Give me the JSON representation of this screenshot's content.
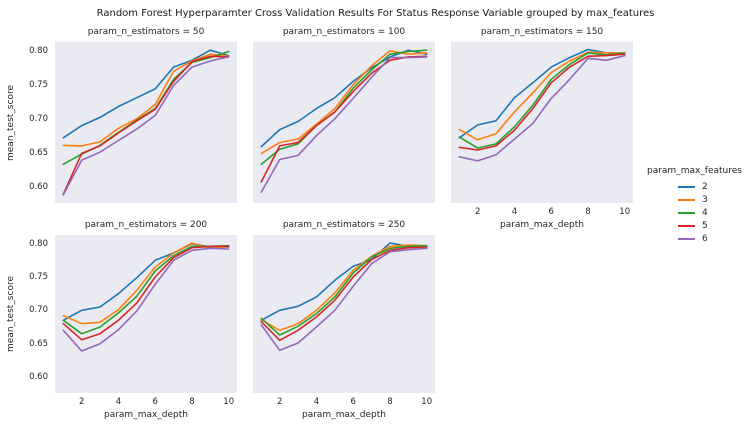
{
  "chart_data": {
    "type": "line",
    "title": "Random Forest Hyperparamter Cross Validation Results For Status Response Variable grouped by max_features",
    "xlabel": "param_max_depth",
    "ylabel": "mean_test_score",
    "x": [
      1,
      2,
      3,
      4,
      5,
      6,
      7,
      8,
      9,
      10
    ],
    "xlim": [
      0.55,
      10.45
    ],
    "ylim": [
      0.576,
      0.813
    ],
    "xticks": [
      2,
      4,
      6,
      8,
      10
    ],
    "yticks": [
      "0.60",
      "0.65",
      "0.70",
      "0.75",
      "0.80"
    ],
    "grid": false,
    "plot_bg": "#eaeaf2",
    "colors": {
      "2": "#1f77b4",
      "3": "#ff7f0e",
      "4": "#2ca02c",
      "5": "#d62728",
      "6": "#9467bd"
    },
    "legend": {
      "title": "param_max_features",
      "position": "right",
      "entries": [
        {
          "label": "2",
          "color": "#1f77b4"
        },
        {
          "label": "3",
          "color": "#ff7f0e"
        },
        {
          "label": "4",
          "color": "#2ca02c"
        },
        {
          "label": "5",
          "color": "#d62728"
        },
        {
          "label": "6",
          "color": "#9467bd"
        }
      ]
    },
    "facets": [
      {
        "title": "param_n_estimators = 50",
        "row": 0,
        "col": 0,
        "series": [
          {
            "name": "2",
            "values": [
              0.672,
              0.69,
              0.702,
              0.718,
              0.731,
              0.744,
              0.776,
              0.786,
              0.801,
              0.793
            ]
          },
          {
            "name": "3",
            "values": [
              0.661,
              0.66,
              0.666,
              0.686,
              0.7,
              0.721,
              0.77,
              0.785,
              0.795,
              0.792
            ]
          },
          {
            "name": "4",
            "values": [
              0.633,
              0.648,
              0.661,
              0.68,
              0.698,
              0.715,
              0.758,
              0.783,
              0.79,
              0.799
            ]
          },
          {
            "name": "5",
            "values": [
              0.589,
              0.649,
              0.66,
              0.679,
              0.697,
              0.714,
              0.755,
              0.784,
              0.792,
              0.791
            ]
          },
          {
            "name": "6",
            "values": [
              0.588,
              0.639,
              0.651,
              0.668,
              0.685,
              0.705,
              0.749,
              0.776,
              0.785,
              0.791
            ]
          }
        ]
      },
      {
        "title": "param_n_estimators = 100",
        "row": 0,
        "col": 1,
        "series": [
          {
            "name": "2",
            "values": [
              0.659,
              0.684,
              0.696,
              0.715,
              0.731,
              0.755,
              0.775,
              0.791,
              0.801,
              0.795
            ]
          },
          {
            "name": "3",
            "values": [
              0.649,
              0.665,
              0.67,
              0.692,
              0.715,
              0.75,
              0.778,
              0.8,
              0.795,
              0.797
            ]
          },
          {
            "name": "4",
            "values": [
              0.633,
              0.655,
              0.663,
              0.69,
              0.71,
              0.745,
              0.772,
              0.795,
              0.799,
              0.801
            ]
          },
          {
            "name": "5",
            "values": [
              0.607,
              0.66,
              0.665,
              0.69,
              0.71,
              0.74,
              0.767,
              0.786,
              0.791,
              0.792
            ]
          },
          {
            "name": "6",
            "values": [
              0.592,
              0.64,
              0.646,
              0.675,
              0.7,
              0.73,
              0.761,
              0.79,
              0.79,
              0.791
            ]
          }
        ]
      },
      {
        "title": "param_n_estimators = 150",
        "row": 0,
        "col": 2,
        "series": [
          {
            "name": "2",
            "values": [
              0.672,
              0.691,
              0.697,
              0.731,
              0.753,
              0.776,
              0.79,
              0.802,
              0.797,
              0.796
            ]
          },
          {
            "name": "3",
            "values": [
              0.684,
              0.669,
              0.678,
              0.71,
              0.738,
              0.768,
              0.785,
              0.798,
              0.797,
              0.797
            ]
          },
          {
            "name": "4",
            "values": [
              0.673,
              0.657,
              0.663,
              0.688,
              0.72,
              0.758,
              0.78,
              0.797,
              0.794,
              0.797
            ]
          },
          {
            "name": "5",
            "values": [
              0.658,
              0.654,
              0.66,
              0.683,
              0.715,
              0.753,
              0.776,
              0.792,
              0.793,
              0.795
            ]
          },
          {
            "name": "6",
            "values": [
              0.644,
              0.638,
              0.647,
              0.67,
              0.693,
              0.73,
              0.758,
              0.789,
              0.786,
              0.793
            ]
          }
        ]
      },
      {
        "title": "param_n_estimators = 200",
        "row": 1,
        "col": 0,
        "series": [
          {
            "name": "2",
            "values": [
              0.685,
              0.7,
              0.705,
              0.725,
              0.749,
              0.775,
              0.786,
              0.8,
              0.795,
              0.795
            ]
          },
          {
            "name": "3",
            "values": [
              0.692,
              0.68,
              0.682,
              0.701,
              0.73,
              0.765,
              0.786,
              0.801,
              0.793,
              0.796
            ]
          },
          {
            "name": "4",
            "values": [
              0.685,
              0.665,
              0.675,
              0.696,
              0.721,
              0.759,
              0.782,
              0.796,
              0.796,
              0.797
            ]
          },
          {
            "name": "5",
            "values": [
              0.68,
              0.656,
              0.665,
              0.685,
              0.711,
              0.75,
              0.779,
              0.794,
              0.796,
              0.796
            ]
          },
          {
            "name": "6",
            "values": [
              0.67,
              0.639,
              0.65,
              0.671,
              0.699,
              0.739,
              0.775,
              0.79,
              0.793,
              0.792
            ]
          }
        ]
      },
      {
        "title": "param_n_estimators = 250",
        "row": 1,
        "col": 1,
        "series": [
          {
            "name": "2",
            "values": [
              0.685,
              0.7,
              0.706,
              0.72,
              0.745,
              0.766,
              0.776,
              0.801,
              0.796,
              0.796
            ]
          },
          {
            "name": "3",
            "values": [
              0.686,
              0.67,
              0.68,
              0.7,
              0.726,
              0.76,
              0.781,
              0.796,
              0.798,
              0.797
            ]
          },
          {
            "name": "4",
            "values": [
              0.688,
              0.663,
              0.676,
              0.695,
              0.72,
              0.756,
              0.78,
              0.793,
              0.796,
              0.797
            ]
          },
          {
            "name": "5",
            "values": [
              0.683,
              0.655,
              0.67,
              0.69,
              0.715,
              0.75,
              0.776,
              0.79,
              0.794,
              0.795
            ]
          },
          {
            "name": "6",
            "values": [
              0.678,
              0.64,
              0.651,
              0.675,
              0.7,
              0.736,
              0.77,
              0.788,
              0.791,
              0.793
            ]
          }
        ]
      }
    ]
  }
}
